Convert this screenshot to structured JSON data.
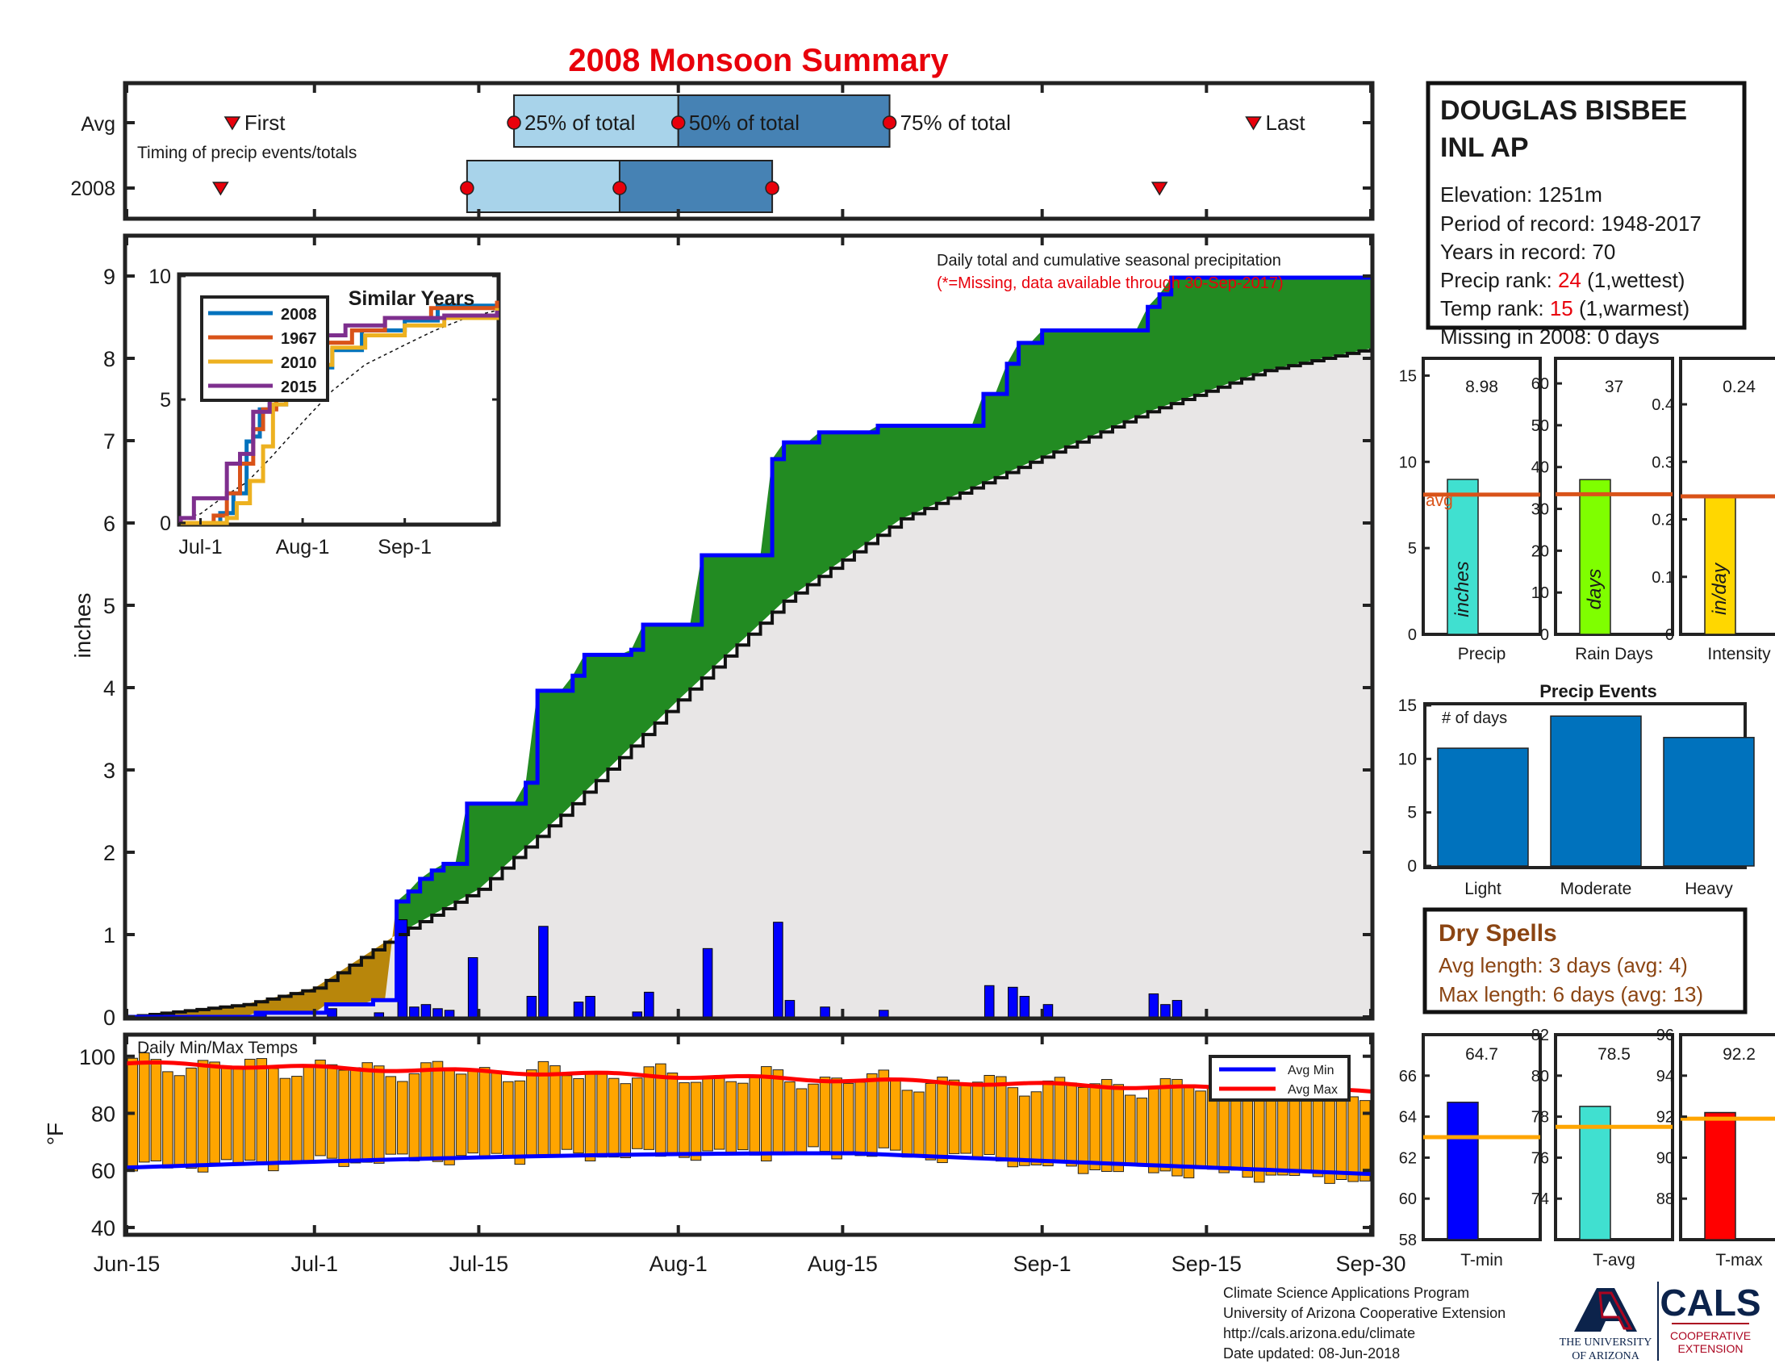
{
  "header": {
    "title": "2008 Monsoon Summary"
  },
  "timing": {
    "rows": [
      "Avg",
      "2008"
    ],
    "caption": "Timing of precip events/totals",
    "labels": {
      "first": "First",
      "q25": "25% of total",
      "q50": "50% of total",
      "q75": "75% of total",
      "last": "Last"
    },
    "avg": {
      "first": "Jun-24",
      "q25": "Jul-18",
      "q50": "Aug-1",
      "q75": "Aug-19",
      "last": "Sep-19"
    },
    "year": {
      "first": "Jun-23",
      "q25": "Jul-14",
      "q50": "Jul-27",
      "q75": "Aug-9",
      "last": "Sep-11"
    },
    "colors": {
      "light": "#a8d3ea",
      "dark": "#4682b4",
      "marker": "#e8000b"
    }
  },
  "station": {
    "name_line1": "DOUGLAS BISBEE",
    "name_line2": "INL AP",
    "elevation": "Elevation: 1251m",
    "period": "Period of record: 1948-2017",
    "years": "Years in record: 70",
    "precip_rank_label": "Precip rank: ",
    "precip_rank_value": "24",
    "precip_rank_note": " (1,wettest)",
    "temp_rank_label": "Temp rank: ",
    "temp_rank_value": "15",
    "temp_rank_note": " (1,warmest)",
    "missing": "Missing in 2008: 0 days"
  },
  "main_chart": {
    "ylabel": "inches",
    "legend_line1": "Daily total and cumulative seasonal precipitation",
    "legend_line2": "(*=Missing, data available through 30-Sep-2017)",
    "x_ticks": [
      "Jun-15",
      "Jul-1",
      "Jul-15",
      "Aug-1",
      "Aug-15",
      "Sep-1",
      "Sep-15",
      "Sep-30"
    ],
    "y_ticks": [
      "0",
      "1",
      "2",
      "3",
      "4",
      "5",
      "6",
      "7",
      "8",
      "9"
    ]
  },
  "inset": {
    "title": "Similar Years",
    "x_ticks": [
      "Jul-1",
      "Aug-1",
      "Sep-1"
    ],
    "y_ticks": [
      "0",
      "5",
      "10"
    ],
    "legend": [
      "2008",
      "1967",
      "2010",
      "2015"
    ]
  },
  "stat_bars": [
    {
      "label": "Precip",
      "value_text": "8.98",
      "inner": "inches",
      "value": 8.98,
      "avg": 8.1,
      "ymax": 16,
      "ticks": [
        "0",
        "5",
        "10",
        "15"
      ],
      "color": "#40e0d0",
      "avg_label": "avg"
    },
    {
      "label": "Rain Days",
      "value_text": "37",
      "inner": "days",
      "value": 37,
      "avg": 33.5,
      "ymax": 66,
      "ticks": [
        "0",
        "10",
        "20",
        "30",
        "40",
        "50",
        "60"
      ],
      "color": "#7fff00"
    },
    {
      "label": "Intensity",
      "value_text": "0.24",
      "inner": "in/day",
      "value": 0.24,
      "avg": 0.24,
      "ymax": 0.48,
      "ticks": [
        "0",
        "0.1",
        "0.2",
        "0.3",
        "0.4"
      ],
      "color": "#ffd700"
    }
  ],
  "precip_events": {
    "title": "Precip Events",
    "note": "# of days",
    "y_ticks": [
      "0",
      "5",
      "10",
      "15"
    ],
    "categories": [
      "Light",
      "Moderate",
      "Heavy"
    ],
    "values": [
      11,
      14,
      12
    ]
  },
  "dry_spells": {
    "title": "Dry Spells",
    "avg_length": "Avg length: 3 days (avg: 4)",
    "max_length": "Max length: 6 days (avg: 13)"
  },
  "temp_chart": {
    "title": "Daily Min/Max Temps",
    "ylabel": "°F",
    "y_ticks": [
      "40",
      "60",
      "80",
      "100"
    ],
    "legend": [
      "Avg Min",
      "Avg Max"
    ]
  },
  "temp_stats": [
    {
      "label": "T-min",
      "value_text": "64.7",
      "value": 64.7,
      "avg": 63.0,
      "ymin": 58,
      "ymax": 68,
      "ticks": [
        "58",
        "60",
        "62",
        "64",
        "66"
      ],
      "color": "#0000ff"
    },
    {
      "label": "T-avg",
      "value_text": "78.5",
      "value": 78.5,
      "avg": 77.5,
      "ymin": 72,
      "ymax": 82,
      "ticks": [
        "74",
        "76",
        "78",
        "80",
        "82"
      ],
      "color": "#40e0d0"
    },
    {
      "label": "T-max",
      "value_text": "92.2",
      "value": 92.2,
      "avg": 91.9,
      "ymin": 86,
      "ymax": 96,
      "ticks": [
        "88",
        "90",
        "92",
        "94",
        "96"
      ],
      "color": "#ff0000"
    }
  ],
  "footer": {
    "line1": "Climate Science Applications Program",
    "line2": "University of Arizona Cooperative Extension",
    "line3": "http://cals.arizona.edu/climate",
    "line4": " Date updated: 08-Jun-2018",
    "logo_ua_line1": "THE UNIVERSITY",
    "logo_ua_line2": "OF ARIZONA",
    "logo_cals": "CALS",
    "logo_cals_sub1": "COOPERATIVE",
    "logo_cals_sub2": "EXTENSION"
  },
  "chart_data": [
    {
      "type": "bar",
      "title": "Daily total and cumulative seasonal precipitation",
      "ylabel": "inches",
      "ylim": [
        0,
        9.3
      ],
      "xlim": [
        "Jun-15",
        "Sep-30"
      ],
      "daily_precip_2008": [
        {
          "date": "Jul-8",
          "inches": 1.18
        },
        {
          "date": "Jul-9",
          "inches": 0.12
        },
        {
          "date": "Jul-10",
          "inches": 0.15
        },
        {
          "date": "Jul-11",
          "inches": 0.1
        },
        {
          "date": "Jul-12",
          "inches": 0.08
        },
        {
          "date": "Jul-14",
          "inches": 0.72
        },
        {
          "date": "Jul-19",
          "inches": 0.25
        },
        {
          "date": "Jul-20",
          "inches": 1.1
        },
        {
          "date": "Jul-23",
          "inches": 0.18
        },
        {
          "date": "Jul-24",
          "inches": 0.25
        },
        {
          "date": "Jul-28",
          "inches": 0.06
        },
        {
          "date": "Jul-29",
          "inches": 0.3
        },
        {
          "date": "Aug-3",
          "inches": 0.83
        },
        {
          "date": "Aug-9",
          "inches": 1.15
        },
        {
          "date": "Aug-10",
          "inches": 0.2
        },
        {
          "date": "Aug-13",
          "inches": 0.12
        },
        {
          "date": "Aug-18",
          "inches": 0.08
        },
        {
          "date": "Aug-27",
          "inches": 0.38
        },
        {
          "date": "Aug-29",
          "inches": 0.36
        },
        {
          "date": "Aug-30",
          "inches": 0.25
        },
        {
          "date": "Sep-1",
          "inches": 0.15
        },
        {
          "date": "Sep-10",
          "inches": 0.28
        },
        {
          "date": "Sep-11",
          "inches": 0.15
        },
        {
          "date": "Sep-12",
          "inches": 0.2
        }
      ],
      "pre_season_daily": [
        {
          "date": "Jun-26",
          "inches": 0.05
        },
        {
          "date": "Jul-2",
          "inches": 0.1
        },
        {
          "date": "Jul-6",
          "inches": 0.05
        }
      ],
      "cumulative_avg_knots": [
        {
          "date": "Jun-15",
          "inches": 0
        },
        {
          "date": "Jun-25",
          "inches": 0.15
        },
        {
          "date": "Jul-1",
          "inches": 0.35
        },
        {
          "date": "Jul-8",
          "inches": 1.0
        },
        {
          "date": "Jul-15",
          "inches": 1.55
        },
        {
          "date": "Jul-22",
          "inches": 2.45
        },
        {
          "date": "Aug-1",
          "inches": 3.85
        },
        {
          "date": "Aug-10",
          "inches": 5.05
        },
        {
          "date": "Aug-20",
          "inches": 6.05
        },
        {
          "date": "Sep-1",
          "inches": 6.8
        },
        {
          "date": "Sep-10",
          "inches": 7.35
        },
        {
          "date": "Sep-20",
          "inches": 7.85
        },
        {
          "date": "Sep-30",
          "inches": 8.15
        }
      ],
      "cumulative_2008_final": 8.98
    },
    {
      "type": "line",
      "title": "Similar Years",
      "x": [
        "Jul-1",
        "Aug-1",
        "Sep-1"
      ],
      "ylim": [
        0,
        10
      ],
      "series": [
        {
          "name": "2008",
          "end_value": 8.98
        },
        {
          "name": "1967",
          "end_value": 9.0
        },
        {
          "name": "2010",
          "end_value": 8.7
        },
        {
          "name": "2015",
          "end_value": 8.6
        }
      ]
    },
    {
      "type": "bar",
      "title": "Precip Events",
      "categories": [
        "Light",
        "Moderate",
        "Heavy"
      ],
      "values": [
        11,
        14,
        12
      ],
      "ylim": [
        0,
        15
      ]
    },
    {
      "type": "bar",
      "title": "Daily Min/Max Temps",
      "ylabel": "°F",
      "ylim": [
        38,
        107
      ],
      "avg_min_range": [
        61,
        66
      ],
      "avg_max_range": [
        87,
        98
      ],
      "series": [
        {
          "name": "Avg Min"
        },
        {
          "name": "Avg Max"
        }
      ]
    }
  ]
}
